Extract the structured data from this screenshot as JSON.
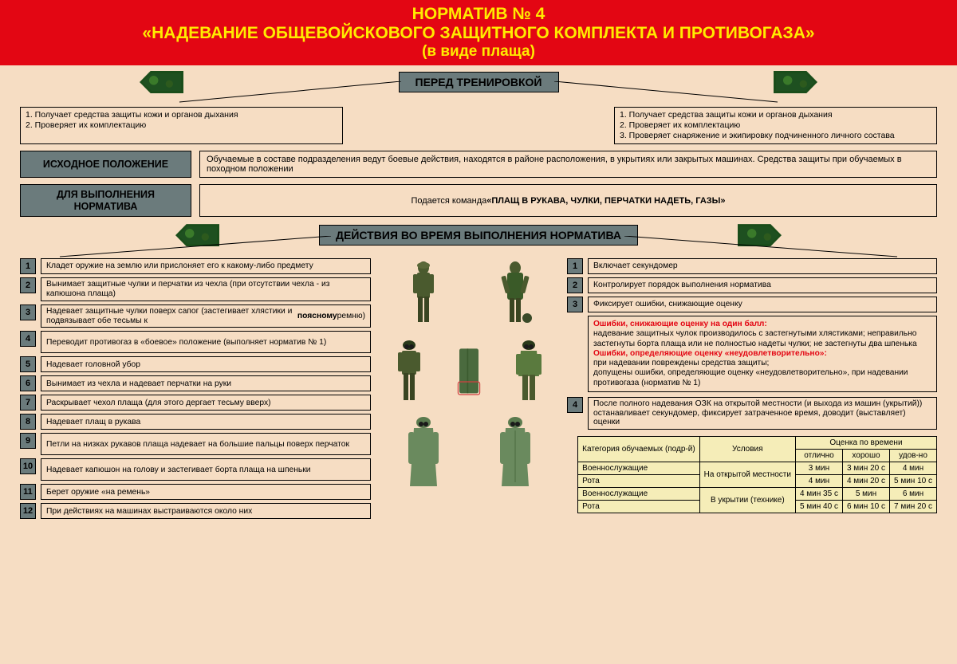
{
  "header": {
    "line1": "НОРМАТИВ № 4",
    "line2": "«НАДЕВАНИЕ ОБЩЕВОЙСКОВОГО ЗАЩИТНОГО КОМПЛЕКТА И ПРОТИВОГАЗА»",
    "line3": "(в виде плаща)"
  },
  "section1": {
    "title": "ПЕРЕД ТРЕНИРОВКОЙ",
    "left": "1. Получает средства защиты кожи и органов дыхания\n2. Проверяет их комплектацию",
    "right": "1. Получает средства защиты кожи и органов дыхания\n2. Проверяет их комплектацию\n3. Проверяет снаряжение и экипировку подчиненного личного состава"
  },
  "labels": {
    "initial": "ИСХОДНОЕ ПОЛОЖЕНИЕ",
    "initial_text": "Обучаемые в составе подразделения ведут боевые действия, находятся в районе расположения, в укрытиях или закрытых машинах. Средства защиты при обучаемых в походном положении",
    "exec": "ДЛЯ ВЫПОЛНЕНИЯ НОРМАТИВА",
    "exec_pre": "Подается команда ",
    "exec_cmd": "«ПЛАЩ В РУКАВА, ЧУЛКИ, ПЕРЧАТКИ НАДЕТЬ, ГАЗЫ»"
  },
  "section2": {
    "title": "ДЕЙСТВИЯ ВО ВРЕМЯ ВЫПОЛНЕНИЯ НОРМАТИВА"
  },
  "left_steps": [
    "Кладет оружие на землю или прислоняет его к какому-либо предмету",
    "Вынимает  защитные чулки и перчатки из чехла (при отсутствии чехла - из капюшона плаща)",
    "Надевает защитные чулки поверх сапог (застегивает хлястики и подвязывает обе тесьмы к поясному ремню)",
    "Переводит противогаз в «боевое» положение (выполняет норматив № 1)",
    "Надевает головной убор",
    "Вынимает из чехла и надевает перчатки на руки",
    "Раскрывает чехол плаща (для этого дергает тесьму вверх)",
    "Надевает плащ в рукава",
    "Петли на низках рукавов плаща надевает на большие пальцы поверх перчаток",
    "Надевает капюшон на голову и застегивает борта плаща на шпеньки",
    "Берет оружие «на ремень»",
    "При действиях на машинах выстраиваются около них"
  ],
  "right_steps": [
    "Включает секундомер",
    "Контролирует порядок выполнения норматива",
    "Фиксирует ошибки, снижающие оценку"
  ],
  "errors": {
    "h1": "Ошибки, снижающие оценку на один балл:",
    "b1": "надевание защитных чулок производилось с застегнутыми хлястиками; неправильно застегнуты борта плаща или не полностью надеты чулки; не застегнуты два шпенька",
    "h2": "Ошибки, определяющие оценку «неудовлетворительно»:",
    "b2": "при надевании повреждены средства защиты;\nдопущены ошибки, определяющие оценку «неудовлетворительно», при надевании противогаза (норматив № 1)"
  },
  "step4r": "После полного надевания ОЗК на открытой местности (и выхода из машин (укрытий)) останавливает секундомер, фиксирует затраченное время, доводит (выставляет) оценки",
  "table": {
    "h_cat": "Категория обучаемых (подр-й)",
    "h_cond": "Условия",
    "h_grade": "Оценка по времени",
    "h_g1": "отлично",
    "h_g2": "хорошо",
    "h_g3": "удов-но",
    "rows": [
      {
        "cat": "Военнослужащие",
        "cond": "На открытой местности",
        "g": [
          "3 мин",
          "3 мин 20 с",
          "4 мин"
        ]
      },
      {
        "cat": "Рота",
        "cond": "",
        "g": [
          "4 мин",
          "4 мин 20 с",
          "5 мин 10 с"
        ]
      },
      {
        "cat": "Военнослужащие",
        "cond": "В укрытии (технике)",
        "g": [
          "4 мин 35 с",
          "5 мин",
          "6 мин"
        ]
      },
      {
        "cat": "Рота",
        "cond": "",
        "g": [
          "5 мин 40 с",
          "6 мин 10 с",
          "7 мин 20 с"
        ]
      }
    ]
  },
  "colors": {
    "bg": "#f6ddc3",
    "hdr": "#e30613",
    "hdrtxt": "#ffeb00",
    "box": "#6b7b7c",
    "tbl": "#f5edb8"
  }
}
